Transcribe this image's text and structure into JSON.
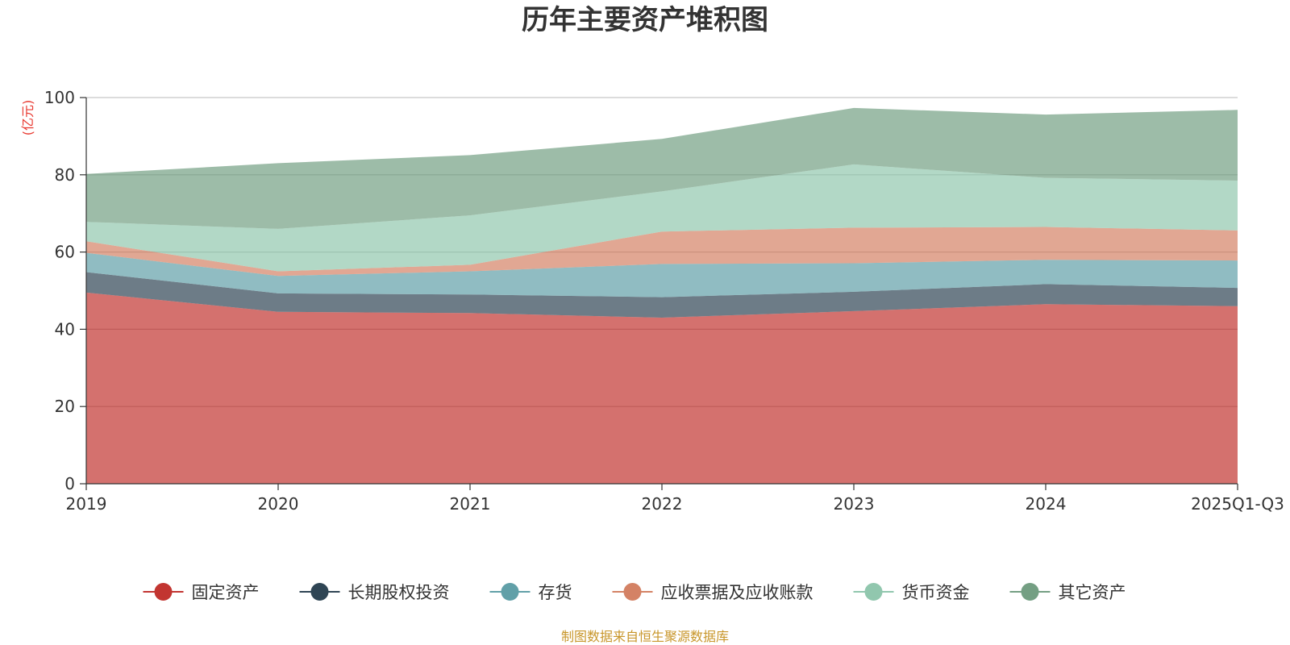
{
  "chart_data": {
    "type": "area",
    "stacked": true,
    "title": "历年主要资产堆积图",
    "unit": "(亿元)",
    "categories": [
      "2019",
      "2020",
      "2021",
      "2022",
      "2023",
      "2024",
      "2025Q1-Q3"
    ],
    "ylim": [
      0,
      100
    ],
    "yticks": [
      0,
      20,
      40,
      60,
      80,
      100
    ],
    "grid": true,
    "legend_position": "bottom",
    "series": [
      {
        "name": "固定资产",
        "color": "#c23531",
        "values": [
          49.5,
          44.5,
          44.2,
          43.0,
          44.7,
          46.5,
          46.0
        ]
      },
      {
        "name": "长期股权投资",
        "color": "#2f4554",
        "values": [
          5.3,
          4.8,
          4.8,
          5.3,
          5.0,
          5.2,
          4.7
        ]
      },
      {
        "name": "存货",
        "color": "#61a0a8",
        "values": [
          5.0,
          4.5,
          6.0,
          8.6,
          7.4,
          6.3,
          7.1
        ]
      },
      {
        "name": "应收票据及应收账款",
        "color": "#d48265",
        "values": [
          3.0,
          1.2,
          1.7,
          8.4,
          9.2,
          8.5,
          7.8
        ]
      },
      {
        "name": "货币资金",
        "color": "#91c7ae",
        "values": [
          5.0,
          11.0,
          12.8,
          10.4,
          16.4,
          12.7,
          12.9
        ]
      },
      {
        "name": "其它资产",
        "color": "#749f83",
        "values": [
          12.4,
          17.0,
          15.6,
          13.6,
          14.6,
          16.4,
          18.3
        ]
      }
    ]
  },
  "footer": {
    "source": "制图数据来自恒生聚源数据库"
  }
}
